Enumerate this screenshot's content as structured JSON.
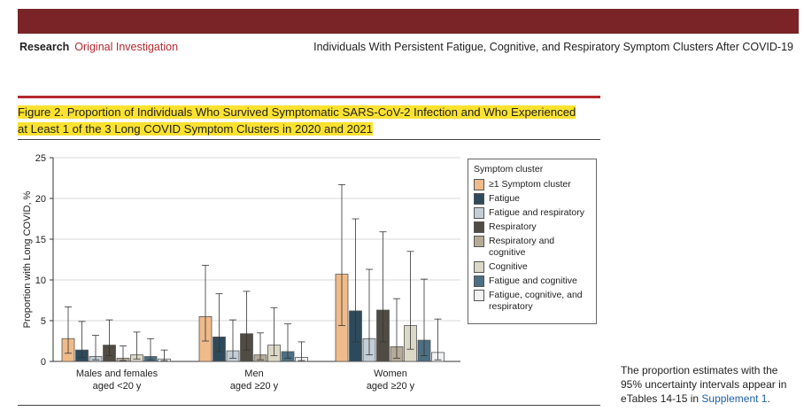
{
  "header": {
    "section": "Research",
    "article_type": "Original Investigation",
    "running_title": "Individuals With Persistent Fatigue, Cognitive, and Respiratory Symptom Clusters After COVID-19"
  },
  "figure": {
    "title_line1": "Figure 2. Proportion of Individuals Who Survived Symptomatic SARS-CoV-2 Infection and Who Experienced",
    "title_line2": "at Least 1 of the 3 Long COVID Symptom Clusters in 2020 and 2021",
    "note_text": "The proportion estimates with the 95% uncertainty intervals appear in eTables 14-15 in",
    "note_link": "Supplement 1",
    "note_end": "."
  },
  "chart_data": {
    "type": "bar",
    "ylabel": "Proportion with Long COVID, %",
    "ylim": [
      0,
      25
    ],
    "yticks": [
      "0",
      "5",
      "10",
      "15",
      "20",
      "25"
    ],
    "categories": [
      [
        "Males and females",
        "aged <20 y"
      ],
      [
        "Men",
        "aged ≥20 y"
      ],
      [
        "Women",
        "aged ≥20 y"
      ]
    ],
    "legend_title": "Symptom cluster",
    "series": [
      {
        "name": "≥1 Symptom cluster",
        "color": "#efbb8a",
        "values": [
          2.8,
          5.5,
          10.7
        ],
        "lower": [
          1.0,
          2.5,
          4.4
        ],
        "upper": [
          6.7,
          11.8,
          21.7
        ]
      },
      {
        "name": "Fatigue",
        "color": "#2e4a5a",
        "values": [
          1.4,
          3.0,
          6.2
        ],
        "lower": [
          0.5,
          1.2,
          2.4
        ],
        "upper": [
          4.9,
          8.3,
          17.5
        ]
      },
      {
        "name": "Fatigue and respiratory",
        "color": "#c3ced6",
        "values": [
          0.6,
          1.3,
          2.8
        ],
        "lower": [
          0.2,
          0.4,
          0.8
        ],
        "upper": [
          3.2,
          5.1,
          11.3
        ]
      },
      {
        "name": "Respiratory",
        "color": "#504c44",
        "values": [
          2.0,
          3.4,
          6.3
        ],
        "lower": [
          0.7,
          1.4,
          2.4
        ],
        "upper": [
          5.1,
          8.6,
          15.9
        ]
      },
      {
        "name": "Respiratory and cognitive",
        "color": "#b6ab98",
        "values": [
          0.4,
          0.8,
          1.8
        ],
        "lower": [
          0.1,
          0.2,
          0.4
        ],
        "upper": [
          1.9,
          3.5,
          7.7
        ]
      },
      {
        "name": "Cognitive",
        "color": "#dcd8c6",
        "values": [
          0.8,
          2.0,
          4.4
        ],
        "lower": [
          0.3,
          0.7,
          1.5
        ],
        "upper": [
          3.6,
          6.6,
          13.5
        ]
      },
      {
        "name": "Fatigue and cognitive",
        "color": "#4d6f82",
        "values": [
          0.6,
          1.2,
          2.6
        ],
        "lower": [
          0.2,
          0.4,
          0.7
        ],
        "upper": [
          2.8,
          4.6,
          10.1
        ]
      },
      {
        "name": "Fatigue, cognitive, and respiratory",
        "color": "#f1f2f3",
        "values": [
          0.3,
          0.5,
          1.1
        ],
        "lower": [
          0.1,
          0.1,
          0.2
        ],
        "upper": [
          1.4,
          2.4,
          5.2
        ]
      }
    ]
  }
}
